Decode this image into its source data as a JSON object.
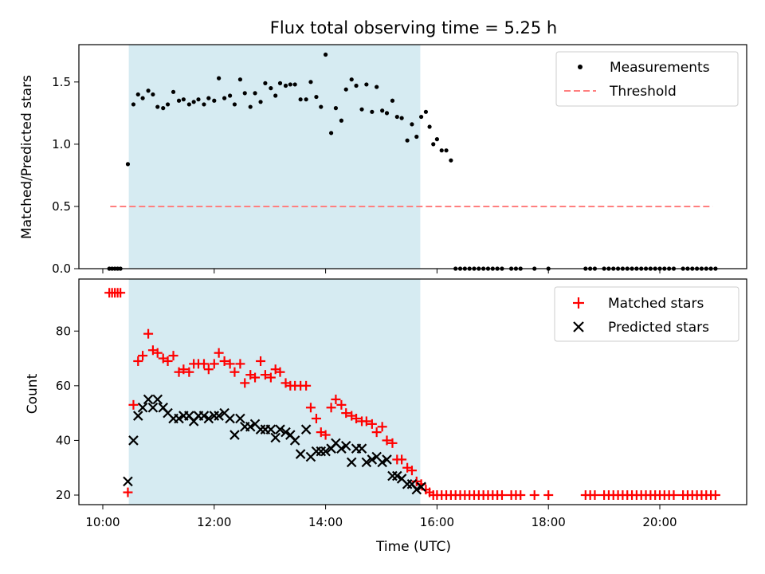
{
  "colors": {
    "measurement": "#000000",
    "threshold": "#ff7f7f",
    "matched": "#ff0000",
    "predicted": "#000000",
    "observing_span": "#add8e6"
  },
  "chart_data": [
    {
      "type": "scatter",
      "title": "Flux total observing time = 5.25 h",
      "xlabel": "",
      "ylabel": "Matched/Predicted stars",
      "xlim": [
        "10:00",
        "21:00"
      ],
      "ylim": [
        0,
        1.8
      ],
      "yticks": [
        "0.0",
        "0.5",
        "1.0",
        "1.5"
      ],
      "grid": false,
      "legend_position": "top-right",
      "observing_span": [
        "10:28",
        "15:42"
      ],
      "threshold": 0.5,
      "threshold_x": [
        "10:08",
        "20:57"
      ],
      "series": [
        {
          "name": "Measurements",
          "marker": "dot",
          "x": [
            "10:07",
            "10:10",
            "10:13",
            "10:16",
            "10:19",
            "10:27",
            "10:33",
            "10:38",
            "10:43",
            "10:49",
            "10:54",
            "10:59",
            "11:05",
            "11:10",
            "11:16",
            "11:22",
            "11:27",
            "11:33",
            "11:38",
            "11:43",
            "11:49",
            "11:54",
            "12:00",
            "12:05",
            "12:11",
            "12:17",
            "12:22",
            "12:28",
            "12:33",
            "12:39",
            "12:44",
            "12:50",
            "12:55",
            "13:01",
            "13:06",
            "13:11",
            "13:17",
            "13:22",
            "13:27",
            "13:33",
            "13:39",
            "13:44",
            "13:50",
            "13:55",
            "14:00",
            "14:06",
            "14:11",
            "14:17",
            "14:22",
            "14:28",
            "14:33",
            "14:39",
            "14:44",
            "14:50",
            "14:55",
            "15:01",
            "15:06",
            "15:12",
            "15:17",
            "15:22",
            "15:28",
            "15:33",
            "15:38",
            "15:43",
            "15:48",
            "15:52",
            "15:56",
            "16:00",
            "16:05",
            "16:10",
            "16:15",
            "16:20",
            "16:25",
            "16:30",
            "16:35",
            "16:40",
            "16:45",
            "16:50",
            "16:55",
            "17:00",
            "17:05",
            "17:10",
            "17:20",
            "17:25",
            "17:30",
            "17:45",
            "18:00",
            "18:40",
            "18:45",
            "18:50",
            "19:00",
            "19:05",
            "19:10",
            "19:15",
            "19:20",
            "19:25",
            "19:30",
            "19:35",
            "19:40",
            "19:45",
            "19:50",
            "19:55",
            "20:00",
            "20:05",
            "20:10",
            "20:15",
            "20:25",
            "20:30",
            "20:35",
            "20:40",
            "20:45",
            "20:50",
            "20:55",
            "21:00"
          ],
          "y": [
            0,
            0,
            0,
            0,
            0,
            0.84,
            1.32,
            1.4,
            1.37,
            1.43,
            1.4,
            1.3,
            1.29,
            1.32,
            1.42,
            1.35,
            1.36,
            1.32,
            1.34,
            1.36,
            1.32,
            1.37,
            1.35,
            1.53,
            1.37,
            1.39,
            1.32,
            1.52,
            1.41,
            1.3,
            1.41,
            1.34,
            1.49,
            1.45,
            1.39,
            1.49,
            1.47,
            1.48,
            1.48,
            1.36,
            1.36,
            1.5,
            1.38,
            1.3,
            1.72,
            1.09,
            1.29,
            1.19,
            1.44,
            1.52,
            1.47,
            1.28,
            1.48,
            1.26,
            1.46,
            1.27,
            1.25,
            1.35,
            1.22,
            1.21,
            1.03,
            1.16,
            1.06,
            1.22,
            1.26,
            1.14,
            1.0,
            1.04,
            0.95,
            0.95,
            0.87,
            0,
            0,
            0,
            0,
            0,
            0,
            0,
            0,
            0,
            0,
            0,
            0,
            0,
            0,
            0,
            0,
            0,
            0,
            0,
            0,
            0,
            0,
            0,
            0,
            0,
            0,
            0,
            0,
            0,
            0,
            0,
            0,
            0,
            0,
            0,
            0,
            0,
            0,
            0,
            0,
            0,
            0,
            0
          ]
        },
        {
          "name": "Threshold",
          "marker": "dashed-line"
        }
      ]
    },
    {
      "type": "scatter",
      "title": "",
      "xlabel": "Time (UTC)",
      "ylabel": "Count",
      "xlim": [
        "10:00",
        "21:00"
      ],
      "ylim": [
        16,
        97
      ],
      "xticks": [
        "10:00",
        "12:00",
        "14:00",
        "16:00",
        "18:00",
        "20:00"
      ],
      "yticks": [
        "20",
        "40",
        "60",
        "80"
      ],
      "grid": false,
      "legend_position": "top-right",
      "observing_span": [
        "10:28",
        "15:42"
      ],
      "series": [
        {
          "name": "Matched stars",
          "marker": "plus",
          "x": [
            "10:07",
            "10:10",
            "10:13",
            "10:16",
            "10:19",
            "10:27",
            "10:33",
            "10:38",
            "10:43",
            "10:49",
            "10:54",
            "10:59",
            "11:05",
            "11:10",
            "11:16",
            "11:22",
            "11:27",
            "11:33",
            "11:38",
            "11:43",
            "11:49",
            "11:54",
            "12:00",
            "12:05",
            "12:11",
            "12:17",
            "12:22",
            "12:28",
            "12:33",
            "12:39",
            "12:44",
            "12:50",
            "12:55",
            "13:01",
            "13:06",
            "13:11",
            "13:17",
            "13:22",
            "13:27",
            "13:33",
            "13:39",
            "13:44",
            "13:50",
            "13:55",
            "14:00",
            "14:06",
            "14:11",
            "14:17",
            "14:22",
            "14:28",
            "14:33",
            "14:39",
            "14:44",
            "14:50",
            "14:55",
            "15:01",
            "15:06",
            "15:12",
            "15:17",
            "15:22",
            "15:28",
            "15:33",
            "15:38",
            "15:43",
            "15:48",
            "15:52",
            "15:56",
            "16:00",
            "16:05",
            "16:10",
            "16:15",
            "16:20",
            "16:25",
            "16:30",
            "16:35",
            "16:40",
            "16:45",
            "16:50",
            "16:55",
            "17:00",
            "17:05",
            "17:10",
            "17:20",
            "17:25",
            "17:30",
            "17:45",
            "18:00",
            "18:40",
            "18:45",
            "18:50",
            "19:00",
            "19:05",
            "19:10",
            "19:15",
            "19:20",
            "19:25",
            "19:30",
            "19:35",
            "19:40",
            "19:45",
            "19:50",
            "19:55",
            "20:00",
            "20:05",
            "20:10",
            "20:15",
            "20:25",
            "20:30",
            "20:35",
            "20:40",
            "20:45",
            "20:50",
            "20:55",
            "21:00"
          ],
          "y": [
            94,
            94,
            94,
            94,
            94,
            21,
            53,
            69,
            71,
            79,
            73,
            72,
            70,
            69,
            71,
            65,
            66,
            65,
            68,
            68,
            68,
            66,
            68,
            72,
            69,
            68,
            65,
            68,
            61,
            64,
            63,
            69,
            64,
            63,
            66,
            65,
            61,
            60,
            60,
            60,
            60,
            52,
            48,
            43,
            42,
            52,
            55,
            53,
            50,
            49,
            48,
            47,
            47,
            46,
            43,
            45,
            40,
            39,
            33,
            33,
            30,
            29,
            25,
            24,
            22,
            21,
            20,
            20,
            20,
            20,
            20,
            20,
            20,
            20,
            20,
            20,
            20,
            20,
            20,
            20,
            20,
            20,
            20,
            20,
            20,
            20,
            20,
            20,
            20,
            20,
            20,
            20,
            20,
            20,
            20,
            20,
            20,
            20,
            20,
            20,
            20,
            20,
            20,
            20,
            20,
            20,
            20,
            20,
            20,
            20,
            20,
            20,
            20,
            20
          ]
        },
        {
          "name": "Predicted stars",
          "marker": "cross",
          "x": [
            "10:27",
            "10:33",
            "10:38",
            "10:43",
            "10:49",
            "10:54",
            "10:59",
            "11:05",
            "11:10",
            "11:16",
            "11:22",
            "11:27",
            "11:33",
            "11:38",
            "11:43",
            "11:49",
            "11:54",
            "12:00",
            "12:05",
            "12:11",
            "12:17",
            "12:22",
            "12:28",
            "12:33",
            "12:39",
            "12:44",
            "12:50",
            "12:55",
            "13:01",
            "13:06",
            "13:11",
            "13:17",
            "13:22",
            "13:27",
            "13:33",
            "13:39",
            "13:44",
            "13:50",
            "13:55",
            "14:00",
            "14:06",
            "14:11",
            "14:17",
            "14:22",
            "14:28",
            "14:33",
            "14:39",
            "14:44",
            "14:50",
            "14:55",
            "15:01",
            "15:06",
            "15:12",
            "15:17",
            "15:22",
            "15:28",
            "15:33",
            "15:38",
            "15:43"
          ],
          "y": [
            25,
            40,
            49,
            52,
            55,
            52,
            55,
            52,
            50,
            48,
            48,
            49,
            49,
            47,
            49,
            49,
            48,
            49,
            49,
            50,
            48,
            42,
            48,
            45,
            45,
            46,
            44,
            44,
            44,
            41,
            44,
            43,
            42,
            40,
            35,
            44,
            34,
            36,
            36,
            36,
            37,
            39,
            37,
            38,
            32,
            37,
            37,
            32,
            33,
            34,
            32,
            33,
            27,
            27,
            26,
            24,
            24,
            22,
            23
          ]
        }
      ]
    }
  ]
}
